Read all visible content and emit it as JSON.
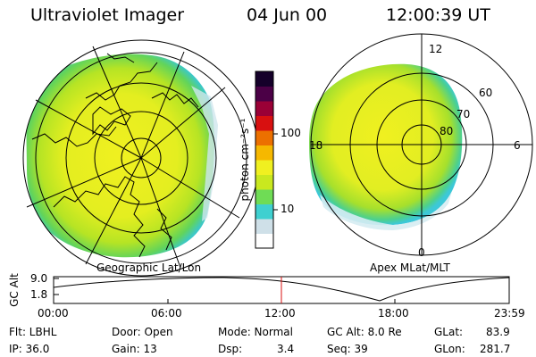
{
  "header": {
    "title": "Ultraviolet Imager",
    "date": "04 Jun 00",
    "time": "12:00:39 UT"
  },
  "left_map": {
    "caption": "Geographic Lat/Lon"
  },
  "right_map": {
    "caption": "Apex MLat/MLT",
    "mlt_labels": [
      "12",
      "18",
      "6",
      "0"
    ],
    "lat_labels": [
      "60",
      "70",
      "80"
    ]
  },
  "colorbar": {
    "label": "photon cm⁻²s⁻¹",
    "ticks": [
      "100",
      "10"
    ],
    "colors": [
      "#ffffff",
      "#cfe0e8",
      "#3fd0d0",
      "#6fdc55",
      "#c9e81f",
      "#f0f020",
      "#f6b800",
      "#ec7000",
      "#d81010",
      "#9a0036",
      "#4b0046",
      "#15002a"
    ]
  },
  "altitude_plot": {
    "ylabel": "GC Alt",
    "yticks": [
      "9.0",
      "1.8"
    ],
    "xticks": [
      "00:00",
      "06:00",
      "12:00",
      "18:00",
      "23:59"
    ]
  },
  "info": {
    "flt": "Flt: LBHL",
    "ip": "IP: 36.0",
    "door": "Door: Open",
    "gain": "Gain: 13",
    "mode": "Mode: Normal",
    "dsp_label": "Dsp:",
    "dsp_value": "3.4",
    "gcalt": "GC Alt: 8.0 Re",
    "seq": "Seq: 39",
    "glat_label": "GLat:",
    "glat_value": "83.9",
    "glon_label": "GLon:",
    "glon_value": "281.7"
  }
}
